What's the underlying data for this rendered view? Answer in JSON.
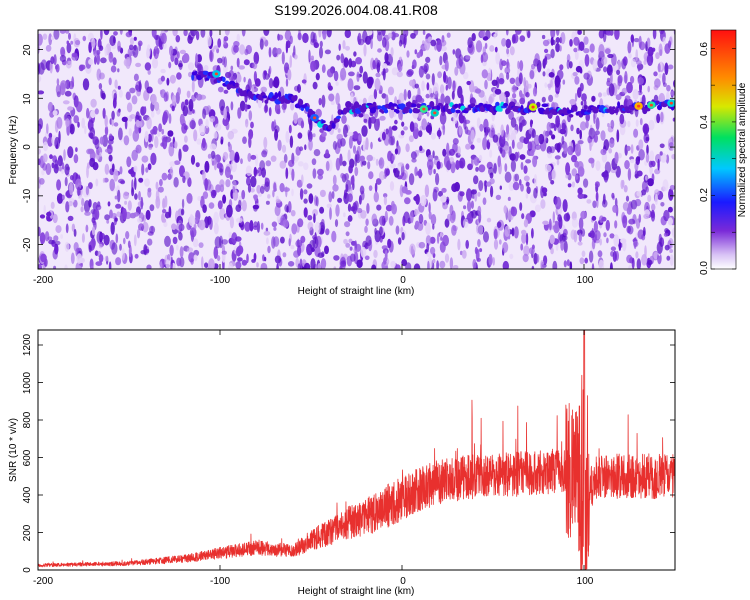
{
  "title": "S199.2026.004.08.41.R08",
  "chart_data": [
    {
      "type": "heatmap",
      "xlabel": "Height of straight line (km)",
      "ylabel": "Frequency (Hz)",
      "xlim": [
        -200,
        150
      ],
      "ylim": [
        -25,
        24
      ],
      "xticks": [
        "-200",
        "-100",
        "0",
        "100"
      ],
      "yticks": [
        "20",
        "10",
        "0",
        "-10",
        "-20"
      ],
      "colorbar": {
        "label": "Normalized spectral amplitude",
        "range": [
          0,
          0.65
        ],
        "ticks": [
          "0.0",
          "0.2",
          "0.4",
          "0.6"
        ]
      },
      "ridge": {
        "description": "dominant frequency track",
        "x": [
          -115,
          -100,
          -90,
          -80,
          -60,
          -50,
          -45,
          -40,
          -30,
          -10,
          10,
          20,
          40,
          60,
          75,
          90,
          110,
          130,
          150
        ],
        "y": [
          15,
          14,
          12,
          10,
          10,
          7,
          5,
          4,
          8,
          8,
          8,
          8,
          8,
          8,
          8,
          7,
          8,
          8,
          9
        ]
      }
    },
    {
      "type": "line",
      "xlabel": "Height of straight line (km)",
      "ylabel": "SNR (10 * v/v)",
      "xlim": [
        -200,
        150
      ],
      "ylim": [
        0,
        1280
      ],
      "xticks": [
        "-200",
        "-100",
        "0",
        "100"
      ],
      "yticks": [
        "0",
        "200",
        "400",
        "600",
        "800",
        "1000",
        "1200"
      ],
      "color": "#e8302e",
      "series": [
        {
          "envelope_x": [
            -200,
            -150,
            -120,
            -100,
            -80,
            -60,
            -50,
            -40,
            -30,
            -20,
            -10,
            0,
            10,
            20,
            40,
            60,
            80,
            90,
            95,
            100,
            105,
            110,
            120,
            150
          ],
          "envelope_y": [
            25,
            35,
            60,
            90,
            120,
            100,
            160,
            200,
            250,
            280,
            330,
            380,
            430,
            470,
            500,
            510,
            520,
            540,
            520,
            300,
            480,
            500,
            500,
            500
          ]
        }
      ]
    }
  ]
}
